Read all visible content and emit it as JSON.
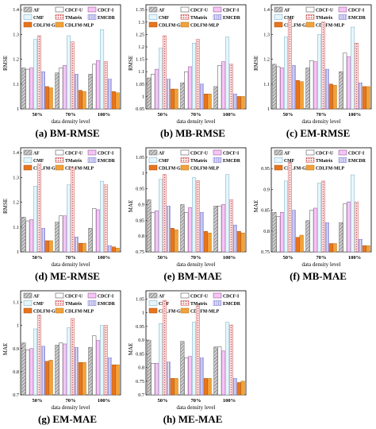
{
  "series_styles": [
    {
      "key": "AF",
      "fill": "#c9c9c9",
      "pattern": "diag",
      "stroke": "#555555"
    },
    {
      "key": "CDCF-U",
      "fill": "#ffffff",
      "pattern": "none",
      "stroke": "#333333"
    },
    {
      "key": "CDCF-I",
      "fill": "#f4c6f4",
      "pattern": "none",
      "stroke": "#8a3d8a"
    },
    {
      "key": "CMF",
      "fill": "#e6f6fb",
      "pattern": "none",
      "stroke": "#6aa6c6"
    },
    {
      "key": "TMatrix",
      "fill": "#fbe4e4",
      "pattern": "dots",
      "stroke": "#c44848"
    },
    {
      "key": "EMCDR",
      "fill": "#ffffff",
      "pattern": "vlines",
      "stroke": "#6a68d0"
    },
    {
      "key": "CDLFM-GBT",
      "fill": "#e8741c",
      "pattern": "none",
      "stroke": "#a04a0a"
    },
    {
      "key": "CDLFM-MLP",
      "fill": "#f2a23a",
      "pattern": "none",
      "stroke": "#b06a10"
    }
  ],
  "chart_data": [
    {
      "type": "bar",
      "caption": "(a) BM-RMSE",
      "ylabel": "RMSE",
      "xlabel": "data density level",
      "ylim": [
        1.0,
        1.42
      ],
      "yticks": [
        1.0,
        1.1,
        1.2,
        1.3,
        1.4
      ],
      "ytick_labels": [
        "1",
        "1.1",
        "1.2",
        "1.3",
        "1.4"
      ],
      "categories": [
        "50%",
        "70%",
        "100%"
      ],
      "series": [
        {
          "name": "AF",
          "values": [
            1.165,
            1.145,
            1.14
          ]
        },
        {
          "name": "CDCF-U",
          "values": [
            1.16,
            1.165,
            1.18
          ]
        },
        {
          "name": "CDCF-I",
          "values": [
            1.165,
            1.175,
            1.195
          ]
        },
        {
          "name": "CMF",
          "values": [
            1.28,
            1.295,
            1.32
          ]
        },
        {
          "name": "TMatrix",
          "values": [
            1.295,
            1.27,
            1.19
          ]
        },
        {
          "name": "EMCDR",
          "values": [
            1.15,
            1.14,
            1.12
          ]
        },
        {
          "name": "CDLFM-GBT",
          "values": [
            1.09,
            1.075,
            1.07
          ]
        },
        {
          "name": "CDLFM-MLP",
          "values": [
            1.085,
            1.07,
            1.065
          ]
        }
      ]
    },
    {
      "type": "bar",
      "caption": "(b) MB-RMSE",
      "ylabel": "RMSE",
      "xlabel": "data density level",
      "ylim": [
        0.95,
        1.37
      ],
      "yticks": [
        0.95,
        1.0,
        1.05,
        1.1,
        1.15,
        1.2,
        1.25,
        1.3,
        1.35
      ],
      "ytick_labels": [
        "0.95",
        "1",
        "1.05",
        "1.1",
        "1.15",
        "1.2",
        "1.25",
        "1.3",
        "1.35"
      ],
      "categories": [
        "50%",
        "70%",
        "100%"
      ],
      "series": [
        {
          "name": "AF",
          "values": [
            1.075,
            1.055,
            1.04
          ]
        },
        {
          "name": "CDCF-U",
          "values": [
            1.09,
            1.1,
            1.125
          ]
        },
        {
          "name": "CDCF-I",
          "values": [
            1.11,
            1.12,
            1.14
          ]
        },
        {
          "name": "CMF",
          "values": [
            1.195,
            1.215,
            1.24
          ]
        },
        {
          "name": "TMatrix",
          "values": [
            1.245,
            1.23,
            1.13
          ]
        },
        {
          "name": "EMCDR",
          "values": [
            1.07,
            1.05,
            1.01
          ]
        },
        {
          "name": "CDLFM-GBT",
          "values": [
            1.03,
            1.01,
            1.0
          ]
        },
        {
          "name": "CDLFM-MLP",
          "values": [
            1.03,
            1.01,
            1.0
          ]
        }
      ]
    },
    {
      "type": "bar",
      "caption": "(c) EM-RMSE",
      "ylabel": "RMSE",
      "xlabel": "data density level",
      "ylim": [
        1.0,
        1.42
      ],
      "yticks": [
        1.0,
        1.1,
        1.2,
        1.3,
        1.4
      ],
      "ytick_labels": [
        "1",
        "1.1",
        "1.2",
        "1.3",
        "1.4"
      ],
      "categories": [
        "50%",
        "70%",
        "100%"
      ],
      "series": [
        {
          "name": "AF",
          "values": [
            1.18,
            1.165,
            1.15
          ]
        },
        {
          "name": "CDCF-U",
          "values": [
            1.17,
            1.195,
            1.225
          ]
        },
        {
          "name": "CDCF-I",
          "values": [
            1.165,
            1.19,
            1.21
          ]
        },
        {
          "name": "CMF",
          "values": [
            1.29,
            1.3,
            1.33
          ]
        },
        {
          "name": "TMatrix",
          "values": [
            1.36,
            1.35,
            1.265
          ]
        },
        {
          "name": "EMCDR",
          "values": [
            1.175,
            1.16,
            1.105
          ]
        },
        {
          "name": "CDLFM-GBT",
          "values": [
            1.115,
            1.1,
            1.09
          ]
        },
        {
          "name": "CDLFM-MLP",
          "values": [
            1.11,
            1.095,
            1.09
          ]
        }
      ]
    },
    {
      "type": "bar",
      "caption": "(d) ME-RMSE",
      "ylabel": "RMSE",
      "xlabel": "data density level",
      "ylim": [
        1.0,
        1.42
      ],
      "yticks": [
        1.0,
        1.1,
        1.2,
        1.3,
        1.4
      ],
      "ytick_labels": [
        "1",
        "1.1",
        "1.2",
        "1.3",
        "1.4"
      ],
      "categories": [
        "50%",
        "70%",
        "100%"
      ],
      "series": [
        {
          "name": "AF",
          "values": [
            1.14,
            1.12,
            1.095
          ]
        },
        {
          "name": "CDCF-U",
          "values": [
            1.125,
            1.145,
            1.175
          ]
        },
        {
          "name": "CDCF-I",
          "values": [
            1.13,
            1.145,
            1.17
          ]
        },
        {
          "name": "CMF",
          "values": [
            1.265,
            1.27,
            1.285
          ]
        },
        {
          "name": "TMatrix",
          "values": [
            1.355,
            1.34,
            1.27
          ]
        },
        {
          "name": "EMCDR",
          "values": [
            1.095,
            1.06,
            1.025
          ]
        },
        {
          "name": "CDLFM-GBT",
          "values": [
            1.045,
            1.035,
            1.02
          ]
        },
        {
          "name": "CDLFM-MLP",
          "values": [
            1.045,
            1.035,
            1.015
          ]
        }
      ]
    },
    {
      "type": "bar",
      "caption": "(e) BM-MAE",
      "ylabel": "MAE",
      "xlabel": "data density level",
      "ylim": [
        0.75,
        1.08
      ],
      "yticks": [
        0.75,
        0.8,
        0.85,
        0.9,
        0.95,
        1.0,
        1.05
      ],
      "ytick_labels": [
        "0.75",
        "0.8",
        "0.85",
        "0.9",
        "0.95",
        "1",
        "1.05"
      ],
      "categories": [
        "50%",
        "70%",
        "100%"
      ],
      "series": [
        {
          "name": "AF",
          "values": [
            0.915,
            0.9,
            0.895
          ]
        },
        {
          "name": "CDCF-U",
          "values": [
            0.875,
            0.875,
            0.895
          ]
        },
        {
          "name": "CDCF-I",
          "values": [
            0.88,
            0.89,
            0.9
          ]
        },
        {
          "name": "CMF",
          "values": [
            0.98,
            0.985,
            0.995
          ]
        },
        {
          "name": "TMatrix",
          "values": [
            0.995,
            0.975,
            0.915
          ]
        },
        {
          "name": "EMCDR",
          "values": [
            0.895,
            0.875,
            0.835
          ]
        },
        {
          "name": "CDLFM-GBT",
          "values": [
            0.825,
            0.815,
            0.815
          ]
        },
        {
          "name": "CDLFM-MLP",
          "values": [
            0.82,
            0.81,
            0.81
          ]
        }
      ]
    },
    {
      "type": "bar",
      "caption": "(f) MB-MAE",
      "ylabel": "MAE",
      "xlabel": "data density level",
      "ylim": [
        0.75,
        1.0
      ],
      "yticks": [
        0.75,
        0.8,
        0.85,
        0.9,
        0.95
      ],
      "ytick_labels": [
        "0.75",
        "0.8",
        "0.85",
        "0.9",
        "0.95"
      ],
      "categories": [
        "50%",
        "70%",
        "100%"
      ],
      "series": [
        {
          "name": "AF",
          "values": [
            0.845,
            0.825,
            0.82
          ]
        },
        {
          "name": "CDCF-U",
          "values": [
            0.835,
            0.85,
            0.865
          ]
        },
        {
          "name": "CDCF-I",
          "values": [
            0.845,
            0.855,
            0.87
          ]
        },
        {
          "name": "CMF",
          "values": [
            0.92,
            0.915,
            0.935
          ]
        },
        {
          "name": "TMatrix",
          "values": [
            0.965,
            0.92,
            0.87
          ]
        },
        {
          "name": "EMCDR",
          "values": [
            0.85,
            0.82,
            0.78
          ]
        },
        {
          "name": "CDLFM-GBT",
          "values": [
            0.785,
            0.77,
            0.765
          ]
        },
        {
          "name": "CDLFM-MLP",
          "values": [
            0.79,
            0.77,
            0.765
          ]
        }
      ]
    },
    {
      "type": "bar",
      "caption": "(g) EM-MAE",
      "ylabel": "MAE",
      "xlabel": "data density level",
      "ylim": [
        0.7,
        1.15
      ],
      "yticks": [
        0.7,
        0.8,
        0.9,
        1.0,
        1.1
      ],
      "ytick_labels": [
        "0.7",
        "0.8",
        "0.9",
        "1",
        "1.1"
      ],
      "categories": [
        "50%",
        "70%",
        "100%"
      ],
      "series": [
        {
          "name": "AF",
          "values": [
            0.925,
            0.915,
            0.905
          ]
        },
        {
          "name": "CDCF-U",
          "values": [
            0.895,
            0.925,
            0.955
          ]
        },
        {
          "name": "CDCF-I",
          "values": [
            0.9,
            0.92,
            0.935
          ]
        },
        {
          "name": "CMF",
          "values": [
            0.985,
            0.99,
            1.0
          ]
        },
        {
          "name": "TMatrix",
          "values": [
            1.045,
            1.03,
            1.0
          ]
        },
        {
          "name": "EMCDR",
          "values": [
            0.91,
            0.905,
            0.86
          ]
        },
        {
          "name": "CDLFM-GBT",
          "values": [
            0.845,
            0.84,
            0.83
          ]
        },
        {
          "name": "CDLFM-MLP",
          "values": [
            0.85,
            0.84,
            0.83
          ]
        }
      ]
    },
    {
      "type": "bar",
      "caption": "(h) ME-MAE",
      "ylabel": "MAE",
      "xlabel": "data density level",
      "ylim": [
        0.7,
        1.08
      ],
      "yticks": [
        0.7,
        0.75,
        0.8,
        0.85,
        0.9,
        0.95,
        1.0,
        1.05
      ],
      "ytick_labels": [
        "0.7",
        "0.75",
        "0.8",
        "0.85",
        "0.9",
        "0.95",
        "1",
        "1.05"
      ],
      "categories": [
        "50%",
        "70%",
        "100%"
      ],
      "series": [
        {
          "name": "AF",
          "values": [
            0.9,
            0.895,
            0.875
          ]
        },
        {
          "name": "CDCF-U",
          "values": [
            0.815,
            0.835,
            0.875
          ]
        },
        {
          "name": "CDCF-I",
          "values": [
            0.815,
            0.84,
            0.86
          ]
        },
        {
          "name": "CMF",
          "values": [
            0.96,
            0.965,
            0.965
          ]
        },
        {
          "name": "TMatrix",
          "values": [
            1.045,
            1.025,
            0.955
          ]
        },
        {
          "name": "EMCDR",
          "values": [
            0.82,
            0.835,
            0.76
          ]
        },
        {
          "name": "CDLFM-GBT",
          "values": [
            0.76,
            0.76,
            0.745
          ]
        },
        {
          "name": "CDLFM-MLP",
          "values": [
            0.76,
            0.76,
            0.75
          ]
        }
      ]
    }
  ]
}
